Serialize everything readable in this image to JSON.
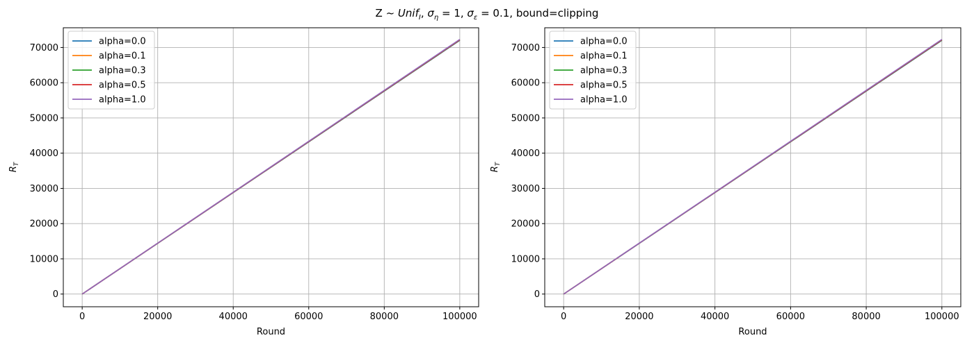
{
  "figure": {
    "title_prefix": "Z ~ ",
    "title_unif": "Unif",
    "title_unif_sub": "I",
    "title_sep1": ", ",
    "title_sigma": "σ",
    "title_eta": "η",
    "title_eq1": " = 1, ",
    "title_eps": "ε",
    "title_eq2": " = 0.1, bound=clipping"
  },
  "colors": {
    "alpha=0.0": "#1f77b4",
    "alpha=0.1": "#ff7f0e",
    "alpha=0.3": "#2ca02c",
    "alpha=0.5": "#d62728",
    "alpha=1.0": "#9467bd"
  },
  "chart_data": [
    {
      "type": "line",
      "title": "",
      "xlabel": "Round",
      "ylabel_main": "R",
      "ylabel_sub": "T",
      "xlim": [
        -5000,
        105000
      ],
      "ylim": [
        -3600,
        75600
      ],
      "xticks": [
        0,
        20000,
        40000,
        60000,
        80000,
        100000
      ],
      "yticks": [
        0,
        10000,
        20000,
        30000,
        40000,
        50000,
        60000,
        70000
      ],
      "grid": true,
      "legend_position": "top-left",
      "series": [
        {
          "name": "alpha=0.0",
          "x": [
            0,
            100000
          ],
          "y": [
            0,
            72000
          ]
        },
        {
          "name": "alpha=0.1",
          "x": [
            0,
            100000
          ],
          "y": [
            0,
            72100
          ]
        },
        {
          "name": "alpha=0.3",
          "x": [
            0,
            100000
          ],
          "y": [
            0,
            72150
          ]
        },
        {
          "name": "alpha=0.5",
          "x": [
            0,
            100000
          ],
          "y": [
            0,
            72200
          ]
        },
        {
          "name": "alpha=1.0",
          "x": [
            0,
            100000
          ],
          "y": [
            0,
            72300
          ]
        }
      ]
    },
    {
      "type": "line",
      "title": "",
      "xlabel": "Round",
      "ylabel_main": "R",
      "ylabel_sub": "T",
      "xlim": [
        -5000,
        105000
      ],
      "ylim": [
        -3600,
        75600
      ],
      "xticks": [
        0,
        20000,
        40000,
        60000,
        80000,
        100000
      ],
      "yticks": [
        0,
        10000,
        20000,
        30000,
        40000,
        50000,
        60000,
        70000
      ],
      "grid": true,
      "legend_position": "top-left",
      "series": [
        {
          "name": "alpha=0.0",
          "x": [
            0,
            100000
          ],
          "y": [
            0,
            72000
          ]
        },
        {
          "name": "alpha=0.1",
          "x": [
            0,
            100000
          ],
          "y": [
            0,
            72100
          ]
        },
        {
          "name": "alpha=0.3",
          "x": [
            0,
            100000
          ],
          "y": [
            0,
            72150
          ]
        },
        {
          "name": "alpha=0.5",
          "x": [
            0,
            100000
          ],
          "y": [
            0,
            72200
          ]
        },
        {
          "name": "alpha=1.0",
          "x": [
            0,
            100000
          ],
          "y": [
            0,
            72300
          ]
        }
      ]
    }
  ]
}
